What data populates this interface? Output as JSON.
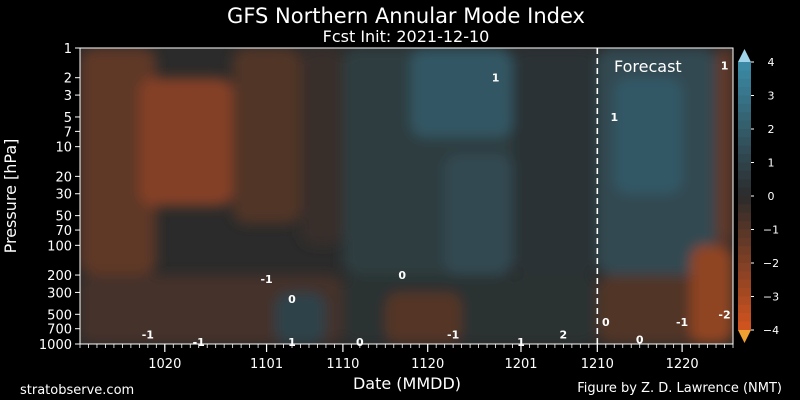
{
  "chart_data": {
    "type": "heatmap",
    "title": "GFS Northern Annular Mode Index",
    "subtitle": "Fcst Init: 2021-12-10",
    "xlabel": "Date (MMDD)",
    "ylabel": "Pressure [hPa]",
    "y_scale": "log",
    "y_inverted": true,
    "ylim": [
      1000,
      1
    ],
    "y_ticks": [
      1,
      2,
      3,
      5,
      7,
      10,
      20,
      30,
      50,
      70,
      100,
      200,
      300,
      500,
      700,
      1000
    ],
    "xlim": [
      "2021-10-10",
      "2021-12-26"
    ],
    "x_ticks": [
      {
        "date": "2021-10-20",
        "label": "1020"
      },
      {
        "date": "2021-11-01",
        "label": "1101"
      },
      {
        "date": "2021-11-10",
        "label": "1110"
      },
      {
        "date": "2021-11-20",
        "label": "1120"
      },
      {
        "date": "2021-12-01",
        "label": "1201"
      },
      {
        "date": "2021-12-10",
        "label": "1210"
      },
      {
        "date": "2021-12-20",
        "label": "1220"
      }
    ],
    "colorbar": {
      "range": [
        -4,
        4
      ],
      "ticks": [
        4,
        3,
        2,
        1,
        0,
        -1,
        -2,
        -3,
        -4
      ],
      "colors": {
        "positive": "#3b8ca8",
        "neutral": "#2b2b2b",
        "negative": "#d4541f",
        "extend_max": "#9ed3ea",
        "extend_min": "#f0a030"
      }
    },
    "forecast_init": "2021-12-10",
    "forecast_label": "Forecast",
    "regions": [
      {
        "start": "2021-10-10",
        "end": "2021-10-19",
        "p_top": 1,
        "p_bottom": 200,
        "value": -1.2
      },
      {
        "start": "2021-10-17",
        "end": "2021-10-28",
        "p_top": 2,
        "p_bottom": 40,
        "value": -2.1
      },
      {
        "start": "2021-10-28",
        "end": "2021-11-05",
        "p_top": 1,
        "p_bottom": 60,
        "value": -0.9
      },
      {
        "start": "2021-11-05",
        "end": "2021-11-10",
        "p_top": 1,
        "p_bottom": 100,
        "value": -0.3
      },
      {
        "start": "2021-11-10",
        "end": "2021-11-30",
        "p_top": 1,
        "p_bottom": 200,
        "value": 0.7
      },
      {
        "start": "2021-11-18",
        "end": "2021-11-30",
        "p_top": 1,
        "p_bottom": 8,
        "value": 1.8
      },
      {
        "start": "2021-11-22",
        "end": "2021-11-30",
        "p_top": 12,
        "p_bottom": 200,
        "value": 1.2
      },
      {
        "start": "2021-11-30",
        "end": "2021-12-10",
        "p_top": 1,
        "p_bottom": 200,
        "value": 0.3
      },
      {
        "start": "2021-12-10",
        "end": "2021-12-24",
        "p_top": 1,
        "p_bottom": 200,
        "value": 1.2
      },
      {
        "start": "2021-12-12",
        "end": "2021-12-20",
        "p_top": 2,
        "p_bottom": 30,
        "value": 1.9
      },
      {
        "start": "2021-10-10",
        "end": "2021-11-10",
        "p_top": 200,
        "p_bottom": 1000,
        "value": -0.6
      },
      {
        "start": "2021-11-02",
        "end": "2021-11-08",
        "p_top": 300,
        "p_bottom": 1000,
        "value": 1.0
      },
      {
        "start": "2021-11-10",
        "end": "2021-12-10",
        "p_top": 200,
        "p_bottom": 1000,
        "value": 0.2
      },
      {
        "start": "2021-11-15",
        "end": "2021-11-24",
        "p_top": 300,
        "p_bottom": 1000,
        "value": -1.0
      },
      {
        "start": "2021-12-10",
        "end": "2021-12-26",
        "p_top": 200,
        "p_bottom": 1000,
        "value": -0.9
      },
      {
        "start": "2021-12-21",
        "end": "2021-12-26",
        "p_top": 100,
        "p_bottom": 1000,
        "value": -2.4
      },
      {
        "start": "2021-12-24",
        "end": "2021-12-26",
        "p_top": 1,
        "p_bottom": 100,
        "value": -1.3
      }
    ],
    "contour_labels": [
      {
        "date": "2021-10-18",
        "p": 800,
        "text": "-1"
      },
      {
        "date": "2021-10-24",
        "p": 950,
        "text": "-1"
      },
      {
        "date": "2021-11-01",
        "p": 220,
        "text": "-1"
      },
      {
        "date": "2021-11-04",
        "p": 350,
        "text": "0"
      },
      {
        "date": "2021-11-04",
        "p": 950,
        "text": "1"
      },
      {
        "date": "2021-11-12",
        "p": 950,
        "text": "0"
      },
      {
        "date": "2021-11-17",
        "p": 200,
        "text": "0"
      },
      {
        "date": "2021-11-23",
        "p": 800,
        "text": "-1"
      },
      {
        "date": "2021-11-28",
        "p": 2,
        "text": "1"
      },
      {
        "date": "2021-12-01",
        "p": 950,
        "text": "1"
      },
      {
        "date": "2021-12-06",
        "p": 800,
        "text": "2"
      },
      {
        "date": "2021-12-11",
        "p": 600,
        "text": "0"
      },
      {
        "date": "2021-12-12",
        "p": 5,
        "text": "1"
      },
      {
        "date": "2021-12-15",
        "p": 900,
        "text": "0"
      },
      {
        "date": "2021-12-20",
        "p": 600,
        "text": "-1"
      },
      {
        "date": "2021-12-25",
        "p": 1.5,
        "text": "1"
      },
      {
        "date": "2021-12-25",
        "p": 500,
        "text": "-2"
      }
    ]
  },
  "footer": {
    "source": "stratobserve.com",
    "credit": "Figure by Z. D. Lawrence (NMT)"
  }
}
